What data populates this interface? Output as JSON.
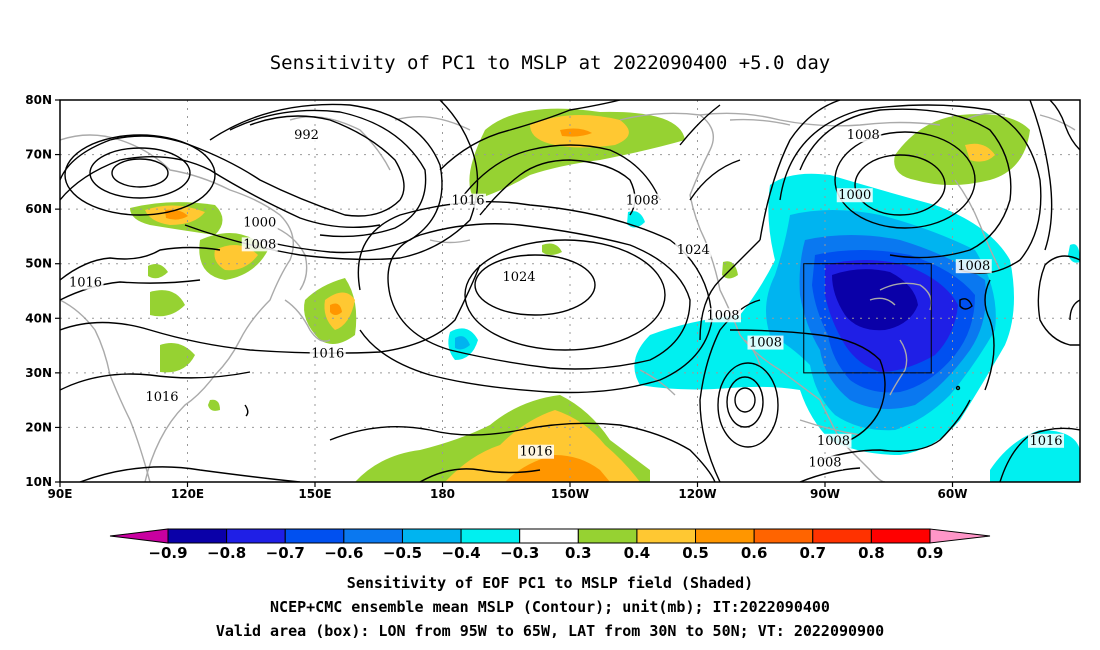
{
  "title": "Sensitivity of PC1 to MSLP at 2022090400 +5.0 day",
  "lat_ticks": [
    "80N",
    "70N",
    "60N",
    "50N",
    "40N",
    "30N",
    "20N",
    "10N"
  ],
  "lon_ticks": [
    "90E",
    "120E",
    "150E",
    "180",
    "150W",
    "120W",
    "90W",
    "60W"
  ],
  "contour_labels": [
    {
      "text": "992",
      "lon": 148,
      "lat": 73
    },
    {
      "text": "1000",
      "lon": 137,
      "lat": 57
    },
    {
      "text": "1008",
      "lon": 137,
      "lat": 53
    },
    {
      "text": "1016",
      "lon": 96,
      "lat": 46
    },
    {
      "text": "1016",
      "lon": 114,
      "lat": 25
    },
    {
      "text": "1016",
      "lon": 153,
      "lat": 33
    },
    {
      "text": "1016",
      "lon": 186,
      "lat": 61
    },
    {
      "text": "1008",
      "lon": 227,
      "lat": 61
    },
    {
      "text": "1024",
      "lon": 239,
      "lat": 52
    },
    {
      "text": "1024",
      "lon": 198,
      "lat": 47
    },
    {
      "text": "1016",
      "lon": 202,
      "lat": 15
    },
    {
      "text": "1008",
      "lon": 246,
      "lat": 40
    },
    {
      "text": "1008",
      "lon": 256,
      "lat": 35
    },
    {
      "text": "1008",
      "lon": 279,
      "lat": 73
    },
    {
      "text": "1000",
      "lon": 277,
      "lat": 62
    },
    {
      "text": "1008",
      "lon": 305,
      "lat": 49
    },
    {
      "text": "1008",
      "lon": 272,
      "lat": 17
    },
    {
      "text": "1008",
      "lon": 270,
      "lat": 13
    },
    {
      "text": "1016",
      "lon": 322,
      "lat": 17
    }
  ],
  "colorbar": {
    "labels": [
      "−0.9",
      "−0.8",
      "−0.7",
      "−0.6",
      "−0.5",
      "−0.4",
      "−0.3",
      "0.3",
      "0.4",
      "0.5",
      "0.6",
      "0.7",
      "0.8",
      "0.9"
    ],
    "colors": [
      "#0a00a8",
      "#1f1fe6",
      "#0050f0",
      "#0a78f0",
      "#00b4f0",
      "#00f0f0",
      "#ffffff",
      "#96d232",
      "#ffc832",
      "#ff9600",
      "#ff6400",
      "#ff3200",
      "#ff0000"
    ],
    "low_color": "#c800a0",
    "high_color": "#ff96c8"
  },
  "captions": [
    "Sensitivity of EOF PC1 to MSLP field (Shaded)",
    "NCEP+CMC ensemble mean MSLP (Contour); unit(mb); IT:2022090400",
    "Valid area (box): LON from 95W to 65W, LAT from 30N to 50N; VT: 2022090900"
  ],
  "valid_box": {
    "lon_min": -95,
    "lon_max": -65,
    "lat_min": 30,
    "lat_max": 50
  }
}
